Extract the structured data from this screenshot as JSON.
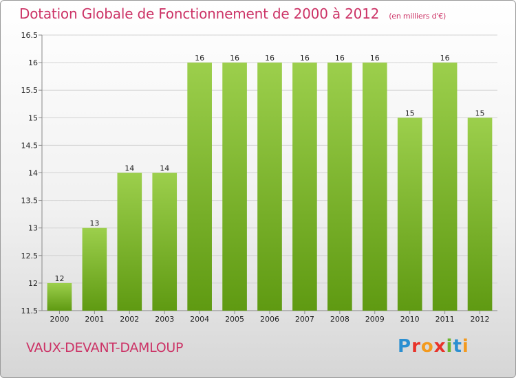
{
  "title": "Dotation Globale de Fonctionnement de 2000 à 2012",
  "unit_note": "(en milliers d'€)",
  "commune": "VAUX-DEVANT-DAMLOUP",
  "logo_text": "Proxiti",
  "colors": {
    "title": "#cc3366",
    "bar_light": "#9ccf4c",
    "bar_dark": "#5f9a12",
    "grid": "#d2d2d2"
  },
  "chart_data": {
    "type": "bar",
    "categories": [
      "2000",
      "2001",
      "2002",
      "2003",
      "2004",
      "2005",
      "2006",
      "2007",
      "2008",
      "2009",
      "2010",
      "2011",
      "2012"
    ],
    "values": [
      12,
      13,
      14,
      14,
      16,
      16,
      16,
      16,
      16,
      16,
      15,
      16,
      15
    ],
    "value_labels": [
      "12",
      "13",
      "14",
      "14",
      "16",
      "16",
      "16",
      "16",
      "16",
      "16",
      "15",
      "16",
      "15"
    ],
    "ylim": [
      11.5,
      16.5
    ],
    "yticks": [
      11.5,
      12,
      12.5,
      13,
      13.5,
      14,
      14.5,
      15,
      15.5,
      16,
      16.5
    ],
    "ytick_labels": [
      "11.5",
      "12",
      "12.5",
      "13",
      "13.5",
      "14",
      "14.5",
      "15",
      "15.5",
      "16",
      "16.5"
    ],
    "grid": true,
    "title": "Dotation Globale de Fonctionnement de 2000 à 2012",
    "xlabel": "",
    "ylabel": ""
  }
}
